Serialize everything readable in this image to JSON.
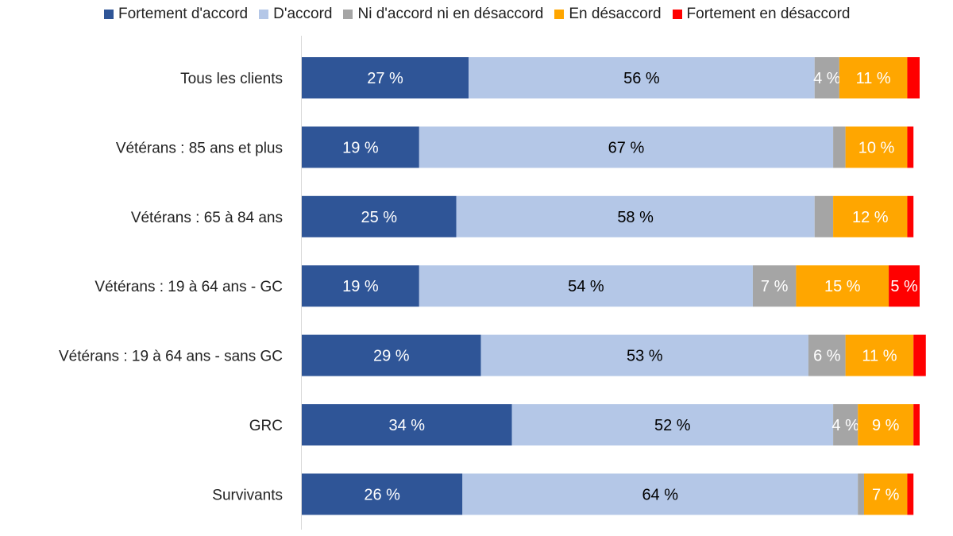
{
  "chart_data": {
    "type": "bar",
    "orientation": "horizontal",
    "stacked": true,
    "xlim": [
      0,
      100
    ],
    "grid": false,
    "legend_position": "top",
    "categories": [
      "Tous les clients",
      "Vétérans : 85 ans et plus",
      "Vétérans : 65 à 84 ans",
      "Vétérans : 19 à 64 ans - GC",
      "Vétérans : 19 à 64 ans - sans GC",
      "GRC",
      "Survivants"
    ],
    "series": [
      {
        "name": "Fortement d'accord",
        "color": "#2F5597",
        "label_color": "#ffffff",
        "values": [
          27,
          19,
          25,
          19,
          29,
          34,
          26
        ]
      },
      {
        "name": "D'accord",
        "color": "#B4C7E7",
        "label_color": "#000000",
        "values": [
          56,
          67,
          58,
          54,
          53,
          52,
          64
        ]
      },
      {
        "name": "Ni d'accord ni en désaccord",
        "color": "#A5A5A5",
        "label_color": "#ffffff",
        "values": [
          4,
          2,
          3,
          7,
          6,
          4,
          1
        ]
      },
      {
        "name": "En désaccord",
        "color": "#FFA600",
        "label_color": "#ffffff",
        "values": [
          11,
          10,
          12,
          15,
          11,
          9,
          7
        ]
      },
      {
        "name": "Fortement en désaccord",
        "color": "#FF0000",
        "label_color": "#ffffff",
        "values": [
          2,
          1,
          1,
          5,
          2,
          1,
          1
        ]
      }
    ],
    "label_suffix": " %",
    "label_min_value": 4
  }
}
